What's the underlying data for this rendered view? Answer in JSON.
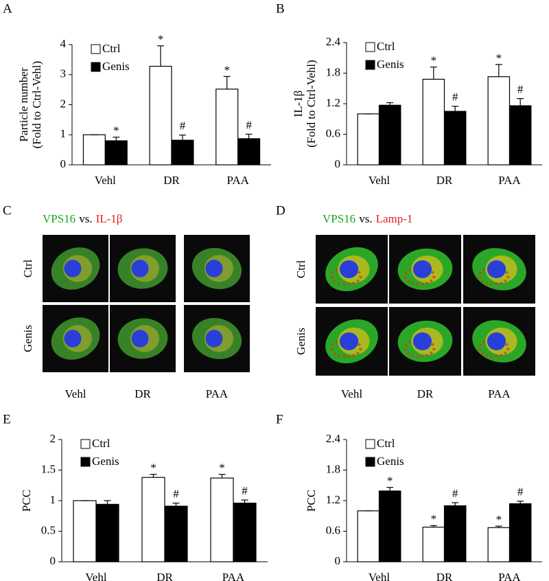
{
  "chart_data": [
    {
      "type": "bar",
      "panel_label": "A",
      "y_label": [
        "Particle number",
        "(Fold to Ctrl-Vehl)"
      ],
      "categories": [
        "Vehl",
        "DR",
        "PAA"
      ],
      "ylim": [
        0,
        4
      ],
      "yticks": [
        0,
        1,
        2,
        3,
        4
      ],
      "legend": "upper left",
      "series": [
        {
          "name": "Ctrl",
          "color": "#ffffff",
          "values": [
            1,
            3.28,
            2.52
          ],
          "errors": [
            0,
            0.68,
            0.42
          ],
          "annotations": [
            null,
            "*",
            "*"
          ]
        },
        {
          "name": "Genis",
          "color": "#000000",
          "values": [
            0.8,
            0.82,
            0.87
          ],
          "errors": [
            0.12,
            0.17,
            0.15
          ],
          "annotations": [
            "*",
            "#",
            "#"
          ]
        }
      ]
    },
    {
      "type": "bar",
      "panel_label": "B",
      "y_label": [
        "IL-1β",
        "(Fold to Ctrl-Vehl)"
      ],
      "categories": [
        "Vehl",
        "DR",
        "PAA"
      ],
      "ylim": [
        0,
        2.4
      ],
      "yticks": [
        0,
        0.6,
        1.2,
        1.8,
        2.4
      ],
      "legend": "upper left",
      "series": [
        {
          "name": "Ctrl",
          "color": "#ffffff",
          "values": [
            1,
            1.68,
            1.73
          ],
          "errors": [
            0,
            0.24,
            0.24
          ],
          "annotations": [
            null,
            "*",
            "*"
          ]
        },
        {
          "name": "Genis",
          "color": "#000000",
          "values": [
            1.17,
            1.05,
            1.16
          ],
          "errors": [
            0.05,
            0.1,
            0.14
          ],
          "annotations": [
            null,
            "#",
            "#"
          ]
        }
      ]
    },
    {
      "type": "bar",
      "panel_label": "E",
      "y_label": [
        "PCC"
      ],
      "categories": [
        "Vehl",
        "DR",
        "PAA"
      ],
      "ylim": [
        0,
        2
      ],
      "yticks": [
        0,
        0.5,
        1,
        1.5,
        2
      ],
      "legend": "upper left",
      "series": [
        {
          "name": "Ctrl",
          "color": "#ffffff",
          "values": [
            1,
            1.38,
            1.37
          ],
          "errors": [
            0,
            0.05,
            0.06
          ],
          "annotations": [
            null,
            "*",
            "*"
          ]
        },
        {
          "name": "Genis",
          "color": "#000000",
          "values": [
            0.94,
            0.91,
            0.96
          ],
          "errors": [
            0.06,
            0.05,
            0.05
          ],
          "annotations": [
            null,
            "#",
            "#"
          ]
        }
      ]
    },
    {
      "type": "bar",
      "panel_label": "F",
      "y_label": [
        "PCC"
      ],
      "categories": [
        "Vehl",
        "DR",
        "PAA"
      ],
      "ylim": [
        0,
        2.4
      ],
      "yticks": [
        0,
        0.6,
        1.2,
        1.8,
        2.4
      ],
      "legend": "upper left",
      "series": [
        {
          "name": "Ctrl",
          "color": "#ffffff",
          "values": [
            1,
            0.68,
            0.67
          ],
          "errors": [
            0,
            0.03,
            0.03
          ],
          "annotations": [
            null,
            "*",
            "*"
          ]
        },
        {
          "name": "Genis",
          "color": "#000000",
          "values": [
            1.39,
            1.1,
            1.14
          ],
          "errors": [
            0.07,
            0.06,
            0.05
          ],
          "annotations": [
            "*",
            "#",
            "#"
          ]
        }
      ]
    }
  ],
  "image_panels": [
    {
      "panel_label": "C",
      "title": [
        {
          "text": "VPS16",
          "color": "#1aa31a"
        },
        {
          "text": "vs.",
          "color": "#000000"
        },
        {
          "text": "IL-1β",
          "color": "#e0201c"
        }
      ],
      "rows": [
        "Ctrl",
        "Genis"
      ],
      "columns": [
        "Vehl",
        "DR",
        "PAA"
      ]
    },
    {
      "panel_label": "D",
      "title": [
        {
          "text": "VPS16",
          "color": "#1aa31a"
        },
        {
          "text": "vs.",
          "color": "#000000"
        },
        {
          "text": "Lamp-1",
          "color": "#e0201c"
        }
      ],
      "rows": [
        "Ctrl",
        "Genis"
      ],
      "columns": [
        "Vehl",
        "DR",
        "PAA"
      ]
    }
  ]
}
